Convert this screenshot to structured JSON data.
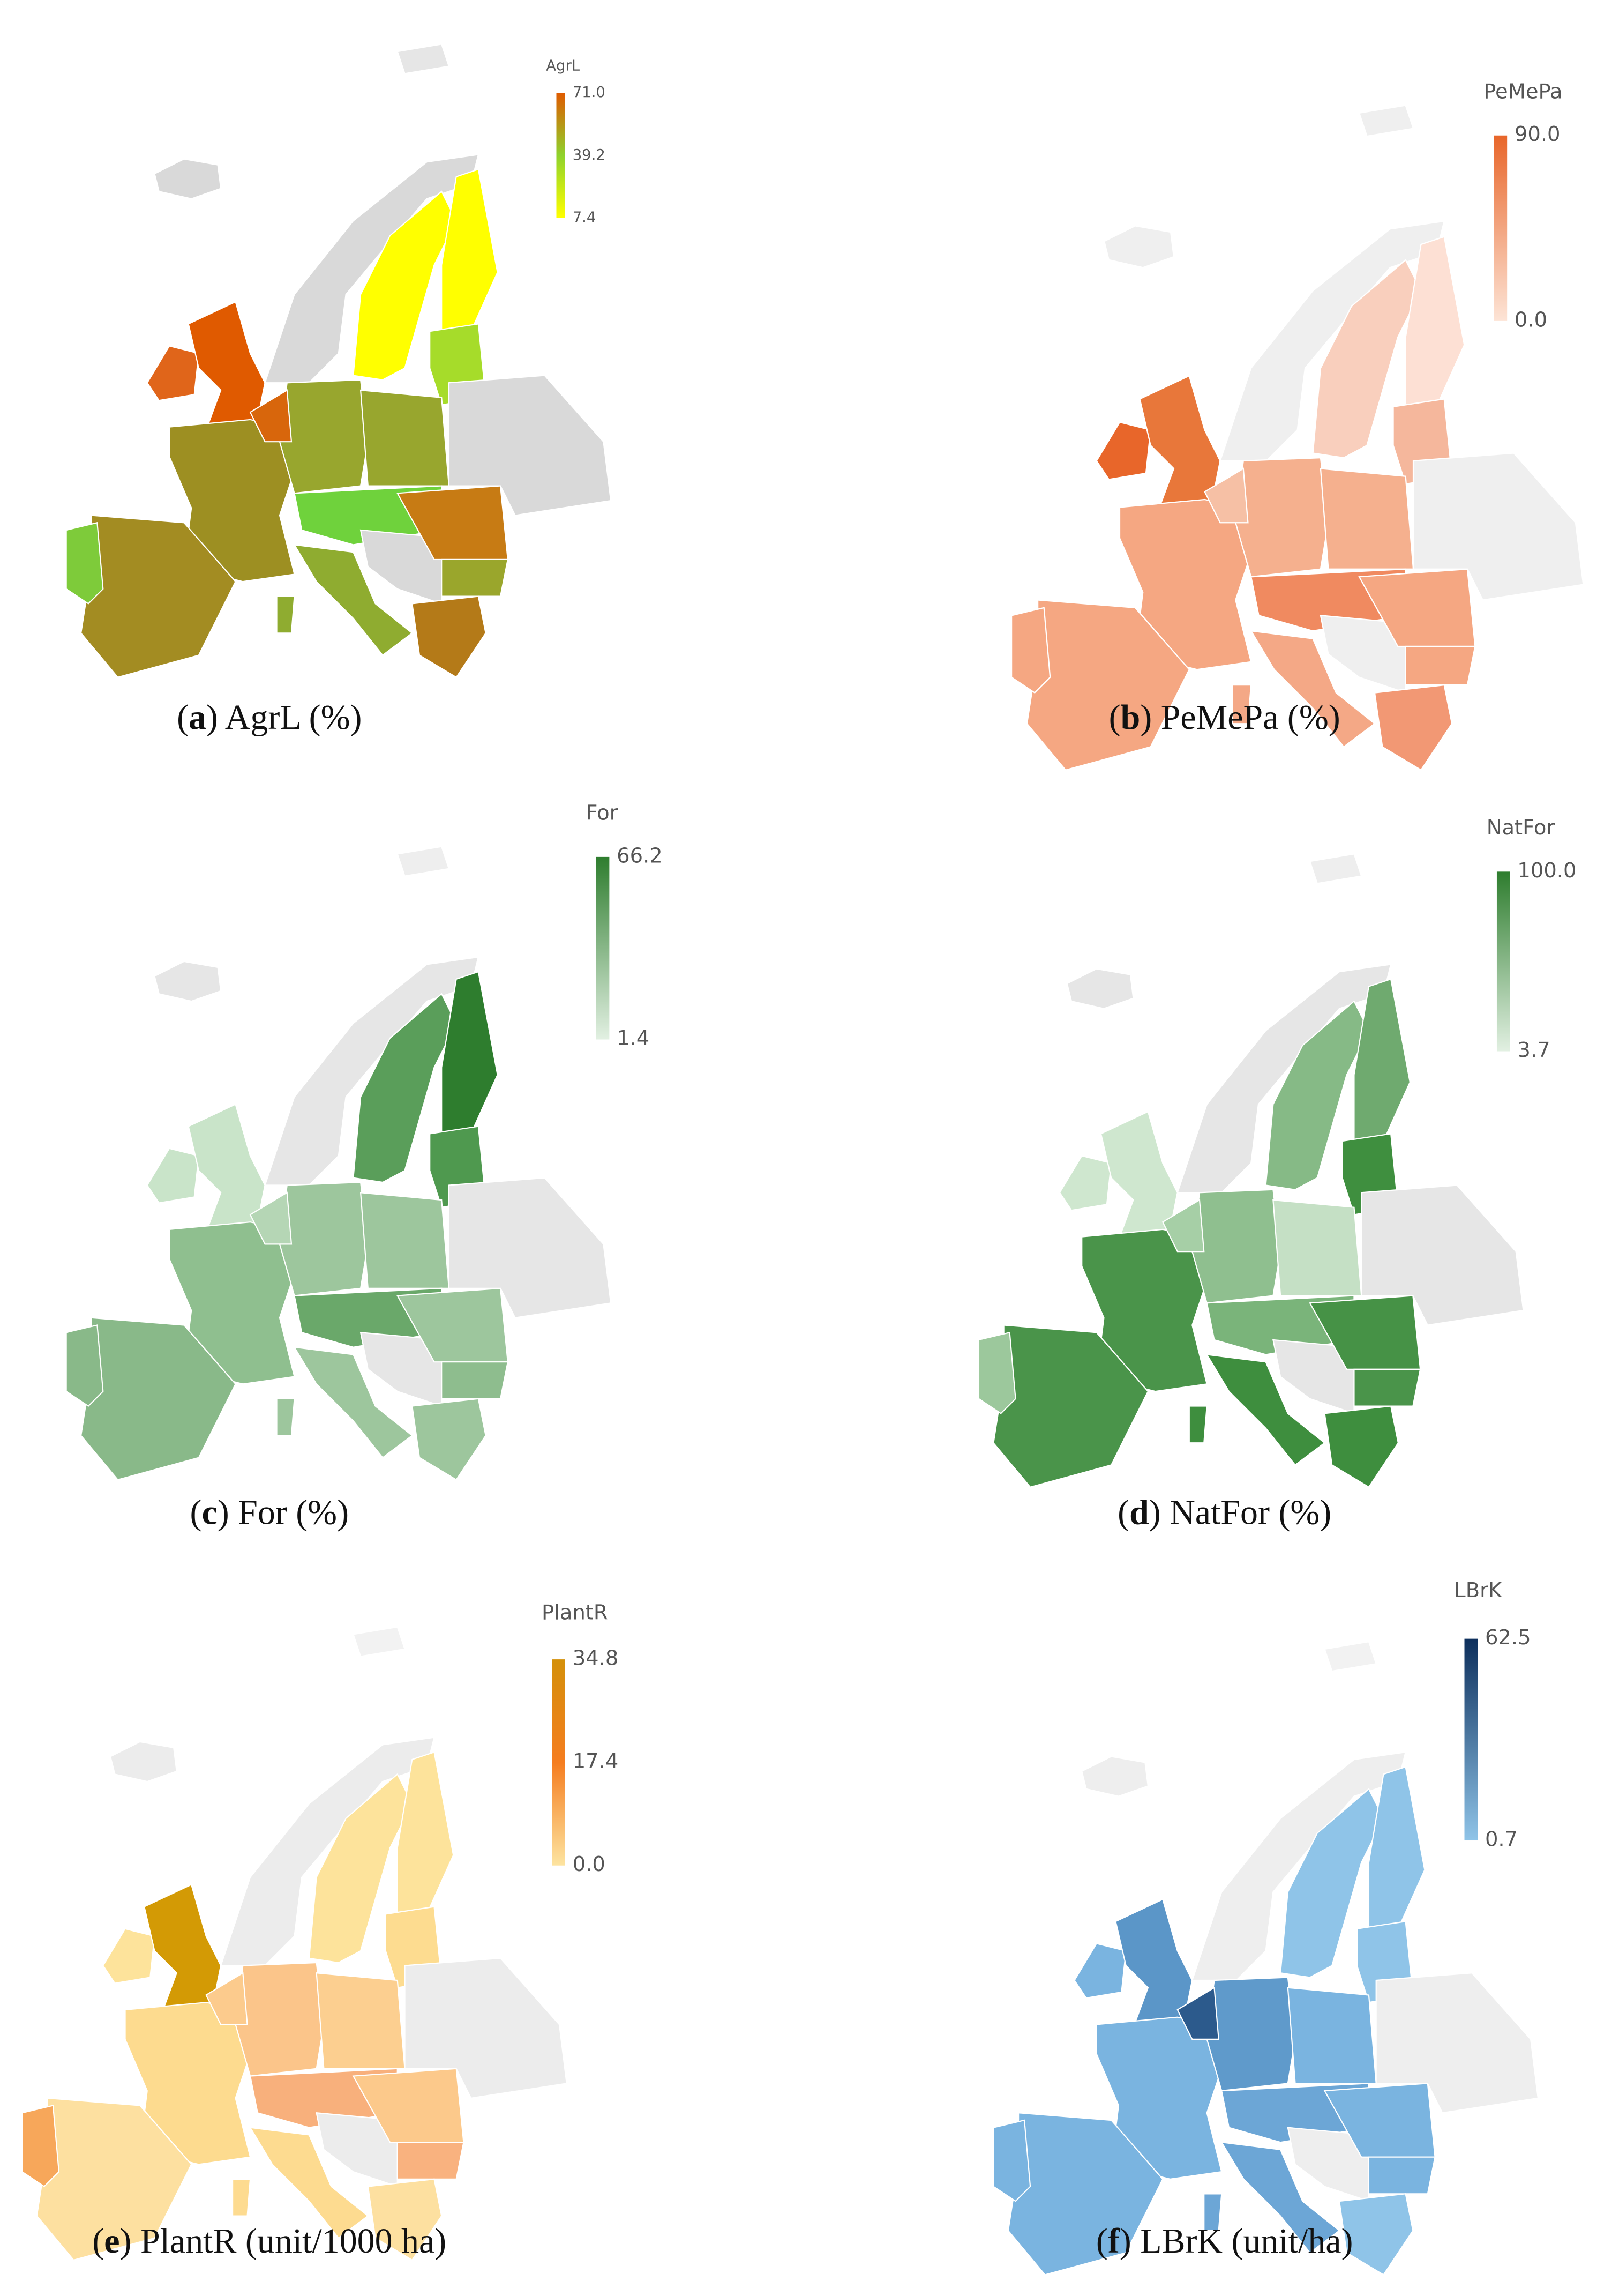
{
  "panels": [
    {
      "caption": [
        "(",
        "a",
        ") AgrL (%)"
      ],
      "legend": {
        "title": "AgrL",
        "ticks": [
          {
            "value": 71.0,
            "label": "71.0"
          },
          39.2,
          7.4
        ],
        "colors": [
          "#ffff00",
          "#8fd22c",
          "#e05a00"
        ]
      },
      "region_colors": [
        "#e6e6e6",
        "#d9d9d9",
        "#d9d9d9",
        "#ffff00",
        "#ffff00",
        "#a6dc2a",
        "#e0651a",
        "#e05a00",
        "#9d8f22",
        "#a38c22",
        "#7ecb3a",
        "#98a62e",
        "#d8660c",
        "#98a62e",
        "#6fd23c",
        "#8fac30",
        "#8fac30",
        "#d9d9d9",
        "#c77b14",
        "#9aa62c",
        "#b47a18",
        "#d9d9d9"
      ]
    },
    {
      "caption": [
        "(",
        "b",
        ") PeMePa (%)"
      ],
      "legend": {
        "title": "PeMePa",
        "ticks": [
          {
            "value": 90.0,
            "label": "90.0"
          },
          {
            "value": 0.0,
            "label": "0.0"
          }
        ],
        "colors": [
          "#fde4d6",
          "#e8662a"
        ]
      },
      "region_colors": [
        "#efefef",
        "#efefef",
        "#efefef",
        "#f9cfbd",
        "#fde0d4",
        "#f5b79c",
        "#e8662a",
        "#e8773a",
        "#f5a782",
        "#f5a782",
        "#f5a782",
        "#f5b08e",
        "#f6c0a5",
        "#f5b08e",
        "#f08a60",
        "#f4a886",
        "#f4a886",
        "#efefef",
        "#f5a782",
        "#f5a782",
        "#f29874",
        "#efefef"
      ]
    },
    {
      "caption": [
        "(",
        "c",
        ") For (%)"
      ],
      "legend": {
        "title": "For",
        "ticks": [
          66.2,
          1.4
        ],
        "colors": [
          "#e2f0e2",
          "#2e7d2e"
        ]
      },
      "region_colors": [
        "#eeeeee",
        "#e6e6e6",
        "#e6e6e6",
        "#5a9e5a",
        "#2e7d2e",
        "#4f994f",
        "#c9e4c9",
        "#c9e4c9",
        "#8fbf8f",
        "#89b989",
        "#89b989",
        "#9dc69d",
        "#b5d6b5",
        "#9dc69d",
        "#6aa86a",
        "#9dc69d",
        "#9dc69d",
        "#e6e6e6",
        "#9dc69d",
        "#8ebd8e",
        "#9dc69d",
        "#e6e6e6"
      ]
    },
    {
      "caption": [
        "(",
        "d",
        ") NatFor (%)"
      ],
      "legend": {
        "title": "NatFor",
        "ticks": [
          {
            "value": 100.0,
            "label": "100.0"
          },
          3.7
        ],
        "colors": [
          "#e2f0e2",
          "#2e7d2e"
        ]
      },
      "region_colors": [
        "#eeeeee",
        "#e6e6e6",
        "#e6e6e6",
        "#86ba86",
        "#6faa6f",
        "#3f8f3f",
        "#cfe7cf",
        "#cfe7cf",
        "#4a944a",
        "#4a944a",
        "#9cc89c",
        "#8fbf8f",
        "#a6cfa6",
        "#c5e0c5",
        "#7ab47a",
        "#3e8e3e",
        "#3e8e3e",
        "#e6e6e6",
        "#469246",
        "#4a944a",
        "#3e8e3e",
        "#e6e6e6"
      ]
    },
    {
      "caption": [
        "(",
        "e",
        ") PlantR (unit/1000 ha)"
      ],
      "legend": {
        "title": "PlantR",
        "ticks": [
          34.8,
          17.4,
          {
            "value": 0.0,
            "label": "0.0"
          }
        ],
        "colors": [
          "#fde4a0",
          "#f57d1f",
          "#d4900a"
        ]
      },
      "region_colors": [
        "#f2f2f2",
        "#ececec",
        "#ececec",
        "#fde39b",
        "#fde39b",
        "#fddc90",
        "#fde39b",
        "#d39a05",
        "#fddb8f",
        "#fde0a0",
        "#f7a75a",
        "#fbc58a",
        "#fccb8d",
        "#fccf90",
        "#f8b07c",
        "#fddb90",
        "#fddb90",
        "#ececec",
        "#fcc98b",
        "#f9b27f",
        "#fde0a0",
        "#ececec"
      ]
    },
    {
      "caption": [
        "(",
        "f",
        ") LBrK (unit/ha)"
      ],
      "legend": {
        "title": "LBrK",
        "ticks": [
          62.5,
          0.7
        ],
        "colors": [
          "#8fc4e8",
          "#0d2f5c"
        ]
      },
      "region_colors": [
        "#f2f2f2",
        "#eeeeee",
        "#eeeeee",
        "#8fc4e8",
        "#8fc4e8",
        "#8fc4e8",
        "#7ab4e0",
        "#5b96c8",
        "#7ab4e0",
        "#7ab4e0",
        "#7ab4e0",
        "#5f9acb",
        "#2c5a8c",
        "#7ab4e0",
        "#6ca6d6",
        "#6ca6d6",
        "#6ca6d6",
        "#eeeeee",
        "#7ab4e0",
        "#7ab4e0",
        "#8fc4e8",
        "#eeeeee"
      ]
    }
  ]
}
